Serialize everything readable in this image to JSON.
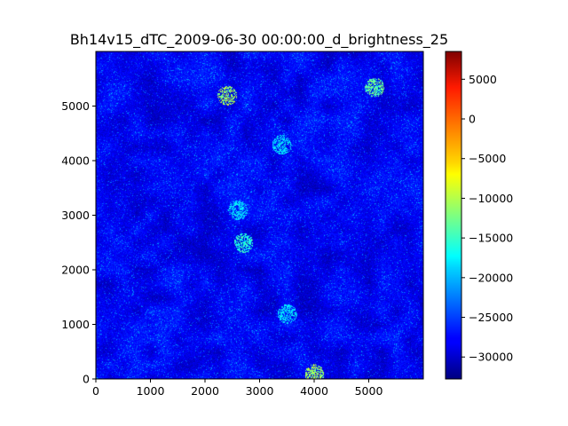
{
  "chart_data": {
    "type": "heatmap",
    "title": "Bh14v15_dTC_2009-06-30 00:00:00_d_brightness_25",
    "xlabel": "",
    "ylabel": "",
    "xlim": [
      0,
      6000
    ],
    "ylim": [
      0,
      6000
    ],
    "x_ticks": [
      0,
      1000,
      2000,
      3000,
      4000,
      5000
    ],
    "y_ticks": [
      0,
      1000,
      2000,
      3000,
      4000,
      5000
    ],
    "grid": false,
    "colormap": "jet",
    "colorbar": {
      "min": -32768,
      "max": 8500,
      "ticks": [
        -30000,
        -25000,
        -20000,
        -15000,
        -10000,
        -5000,
        0,
        5000
      ],
      "tick_labels": [
        "−30000",
        "−25000",
        "−20000",
        "−15000",
        "−10000",
        "−5000",
        "0",
        "5000"
      ]
    },
    "dominant_value_range": [
      -32768,
      -25000
    ],
    "highlights": [
      {
        "x": 2400,
        "y": 5200,
        "level": "green-yellow"
      },
      {
        "x": 5100,
        "y": 5350,
        "level": "green"
      },
      {
        "x": 3400,
        "y": 4300,
        "level": "cyan"
      },
      {
        "x": 2700,
        "y": 2500,
        "level": "cyan-green"
      },
      {
        "x": 4000,
        "y": 100,
        "level": "green-yellow"
      },
      {
        "x": 3500,
        "y": 1200,
        "level": "cyan"
      },
      {
        "x": 2600,
        "y": 3100,
        "level": "cyan"
      }
    ]
  }
}
